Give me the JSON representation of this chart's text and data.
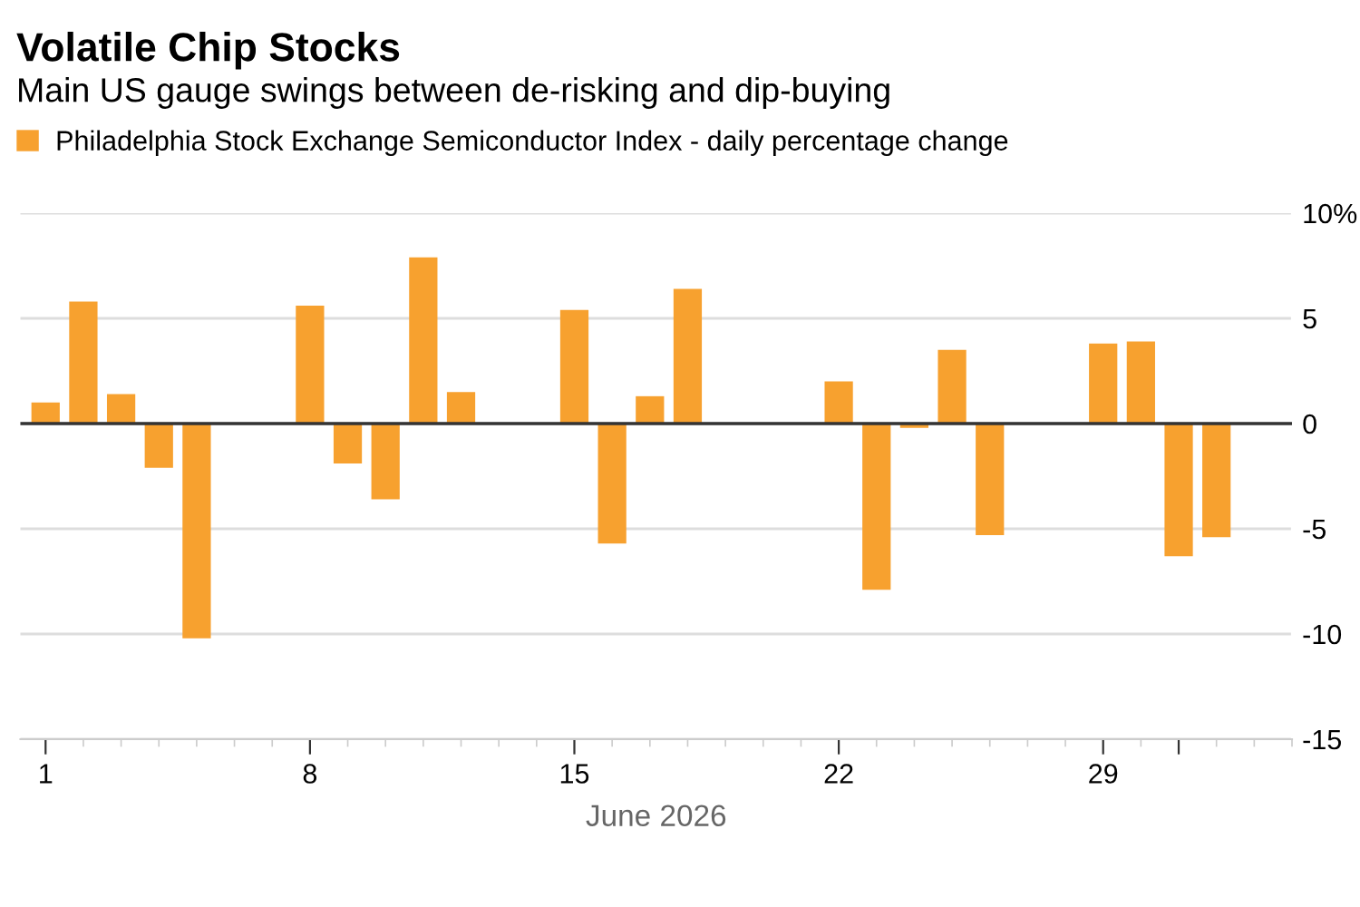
{
  "chart_data": {
    "type": "bar",
    "title": "Volatile Chip Stocks",
    "subtitle": "Main US gauge swings between de-risking and dip-buying",
    "xlabel": "June 2026",
    "x": [
      "2026-06-01",
      "2026-06-02",
      "2026-06-03",
      "2026-06-04",
      "2026-06-05",
      "2026-06-08",
      "2026-06-09",
      "2026-06-10",
      "2026-06-11",
      "2026-06-12",
      "2026-06-15",
      "2026-06-16",
      "2026-06-17",
      "2026-06-18",
      "2026-06-22",
      "2026-06-23",
      "2026-06-24",
      "2026-06-25",
      "2026-06-26",
      "2026-06-29",
      "2026-06-30",
      "2026-07-01",
      "2026-07-02"
    ],
    "series": [
      {
        "name": "Philadelphia Stock Exchange Semiconductor Index - daily percentage change",
        "color": "#f7a12f",
        "values": [
          1.0,
          5.8,
          1.4,
          -2.1,
          -10.2,
          5.6,
          -1.9,
          -3.6,
          7.9,
          1.5,
          5.4,
          -5.7,
          1.3,
          6.4,
          2.0,
          -7.9,
          -0.2,
          3.5,
          -5.3,
          3.8,
          3.9,
          -6.3,
          -5.4
        ]
      }
    ],
    "xlim": [
      "2026-05-31T08:00",
      "2026-07-04"
    ],
    "xticks": [
      {
        "value": "2026-06-01",
        "label": "1"
      },
      {
        "value": "2026-06-08",
        "label": "8"
      },
      {
        "value": "2026-06-15",
        "label": "15"
      },
      {
        "value": "2026-06-22",
        "label": "22"
      },
      {
        "value": "2026-06-29",
        "label": "29"
      },
      {
        "value": "2026-07-01",
        "label": null
      }
    ],
    "ylim": [
      -15,
      10
    ],
    "yticks": [
      {
        "value": 10,
        "label": "10%"
      },
      5,
      0,
      -5,
      -10,
      -15
    ],
    "ref_lines": [
      {
        "axis": "y",
        "value": 0,
        "color": "#333333"
      }
    ],
    "grid": "y",
    "legend": "top left"
  }
}
